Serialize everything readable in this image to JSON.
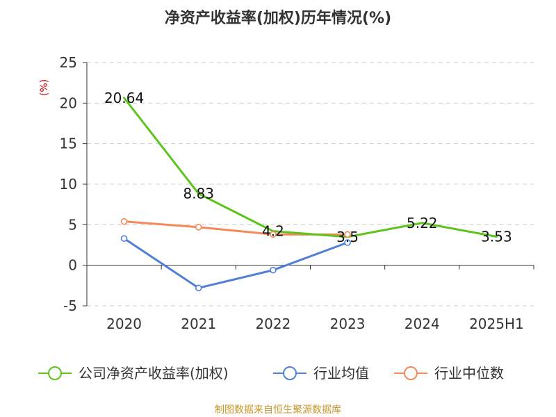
{
  "chart_data": {
    "type": "line",
    "title": "净资产收益率(加权)历年情况(%)",
    "ylabel": "(%)",
    "xlabel": "",
    "categories": [
      "2020",
      "2021",
      "2022",
      "2023",
      "2024",
      "2025H1"
    ],
    "ylim": [
      -5,
      25
    ],
    "yticks": [
      25,
      20,
      15,
      10,
      5,
      0,
      -5
    ],
    "grid": true,
    "legend_position": "bottom",
    "series": [
      {
        "name": "公司净资产收益率(加权)",
        "color": "#5cc41b",
        "values": [
          20.64,
          8.83,
          4.2,
          3.5,
          5.22,
          3.53
        ],
        "labels": [
          "20.64",
          "8.83",
          "4.2",
          "3.5",
          "5.22",
          "3.53"
        ],
        "show_markers": false
      },
      {
        "name": "行业均值",
        "color": "#4f7fd8",
        "values": [
          3.3,
          -2.8,
          -0.6,
          2.8,
          null,
          null
        ],
        "show_markers": true
      },
      {
        "name": "行业中位数",
        "color": "#f5895a",
        "values": [
          5.4,
          4.7,
          3.8,
          3.8,
          null,
          null
        ],
        "show_markers": true
      }
    ]
  },
  "source": "制图数据来自恒生聚源数据库",
  "colors": {
    "axis": "#333333",
    "grid": "#cccccc",
    "ylabel": "#cc0000",
    "source": "#c8962a"
  }
}
